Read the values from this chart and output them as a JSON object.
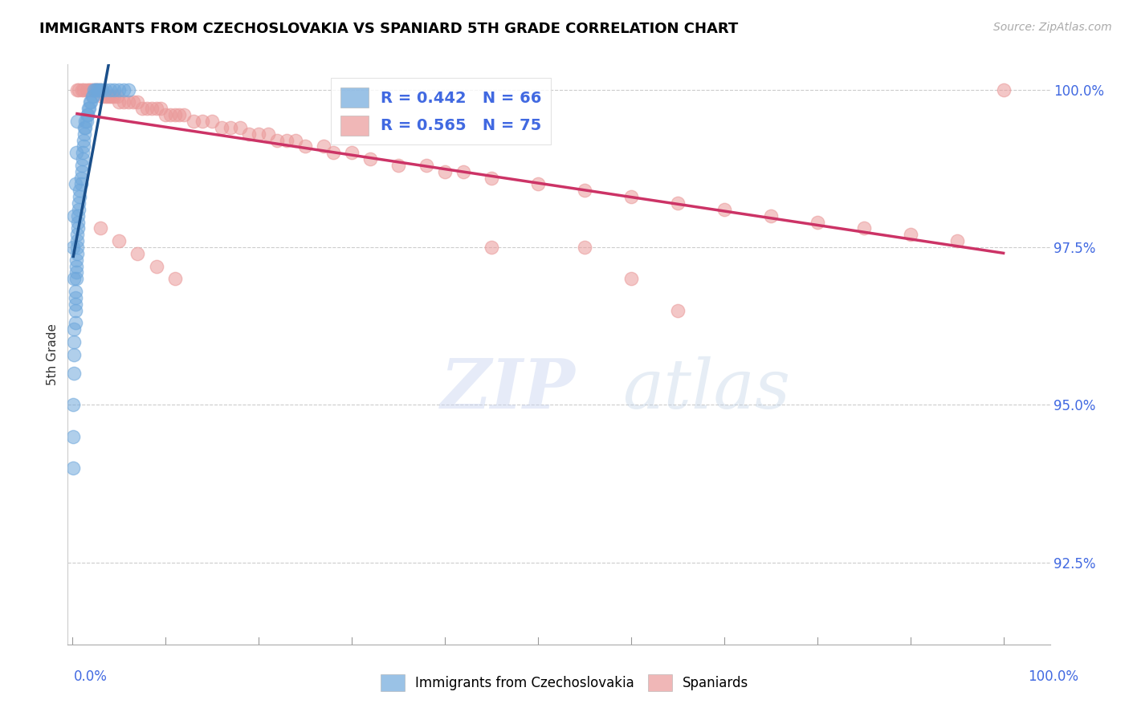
{
  "title": "IMMIGRANTS FROM CZECHOSLOVAKIA VS SPANIARD 5TH GRADE CORRELATION CHART",
  "source": "Source: ZipAtlas.com",
  "ylabel": "5th Grade",
  "blue_R": 0.442,
  "blue_N": 66,
  "pink_R": 0.565,
  "pink_N": 75,
  "blue_color": "#6fa8dc",
  "pink_color": "#ea9999",
  "blue_line_color": "#1a4f8a",
  "pink_line_color": "#cc3366",
  "legend1_label": "R = 0.442   N = 66",
  "legend2_label": "R = 0.565   N = 75",
  "bottom_label1": "Immigrants from Czechoslovakia",
  "bottom_label2": "Spaniards",
  "ytick_vals": [
    0.925,
    0.95,
    0.975,
    1.0
  ],
  "ytick_labels": [
    "92.5%",
    "95.0%",
    "97.5%",
    "100.0%"
  ],
  "blue_x": [
    0.001,
    0.001,
    0.001,
    0.002,
    0.002,
    0.002,
    0.002,
    0.003,
    0.003,
    0.003,
    0.003,
    0.003,
    0.004,
    0.004,
    0.004,
    0.004,
    0.005,
    0.005,
    0.005,
    0.005,
    0.006,
    0.006,
    0.006,
    0.007,
    0.007,
    0.008,
    0.008,
    0.009,
    0.009,
    0.01,
    0.01,
    0.011,
    0.011,
    0.012,
    0.012,
    0.013,
    0.013,
    0.014,
    0.014,
    0.015,
    0.016,
    0.016,
    0.017,
    0.018,
    0.019,
    0.02,
    0.021,
    0.022,
    0.023,
    0.025,
    0.027,
    0.028,
    0.03,
    0.032,
    0.035,
    0.04,
    0.045,
    0.05,
    0.055,
    0.06,
    0.001,
    0.002,
    0.003,
    0.004,
    0.005,
    0.002
  ],
  "blue_y": [
    0.94,
    0.945,
    0.95,
    0.955,
    0.958,
    0.96,
    0.962,
    0.963,
    0.965,
    0.966,
    0.967,
    0.968,
    0.97,
    0.971,
    0.972,
    0.973,
    0.974,
    0.975,
    0.976,
    0.977,
    0.978,
    0.979,
    0.98,
    0.981,
    0.982,
    0.983,
    0.984,
    0.985,
    0.986,
    0.987,
    0.988,
    0.989,
    0.99,
    0.991,
    0.992,
    0.993,
    0.994,
    0.994,
    0.995,
    0.995,
    0.996,
    0.996,
    0.997,
    0.997,
    0.998,
    0.998,
    0.999,
    0.999,
    1.0,
    1.0,
    1.0,
    1.0,
    1.0,
    1.0,
    1.0,
    1.0,
    1.0,
    1.0,
    1.0,
    1.0,
    0.975,
    0.98,
    0.985,
    0.99,
    0.995,
    0.97
  ],
  "pink_x": [
    0.005,
    0.007,
    0.01,
    0.012,
    0.015,
    0.018,
    0.02,
    0.022,
    0.025,
    0.027,
    0.03,
    0.032,
    0.035,
    0.038,
    0.04,
    0.042,
    0.045,
    0.048,
    0.05,
    0.055,
    0.06,
    0.065,
    0.07,
    0.075,
    0.08,
    0.085,
    0.09,
    0.095,
    0.1,
    0.105,
    0.11,
    0.115,
    0.12,
    0.13,
    0.14,
    0.15,
    0.16,
    0.17,
    0.18,
    0.19,
    0.2,
    0.21,
    0.22,
    0.23,
    0.24,
    0.25,
    0.27,
    0.28,
    0.3,
    0.32,
    0.35,
    0.38,
    0.4,
    0.42,
    0.45,
    0.5,
    0.55,
    0.6,
    0.65,
    0.7,
    0.75,
    0.8,
    0.85,
    0.9,
    0.95,
    1.0,
    0.55,
    0.6,
    0.65,
    0.45,
    0.03,
    0.05,
    0.07,
    0.09,
    0.11
  ],
  "pink_y": [
    1.0,
    1.0,
    1.0,
    1.0,
    1.0,
    1.0,
    1.0,
    1.0,
    1.0,
    1.0,
    1.0,
    0.999,
    0.999,
    0.999,
    0.999,
    0.999,
    0.999,
    0.999,
    0.998,
    0.998,
    0.998,
    0.998,
    0.998,
    0.997,
    0.997,
    0.997,
    0.997,
    0.997,
    0.996,
    0.996,
    0.996,
    0.996,
    0.996,
    0.995,
    0.995,
    0.995,
    0.994,
    0.994,
    0.994,
    0.993,
    0.993,
    0.993,
    0.992,
    0.992,
    0.992,
    0.991,
    0.991,
    0.99,
    0.99,
    0.989,
    0.988,
    0.988,
    0.987,
    0.987,
    0.986,
    0.985,
    0.984,
    0.983,
    0.982,
    0.981,
    0.98,
    0.979,
    0.978,
    0.977,
    0.976,
    1.0,
    0.975,
    0.97,
    0.965,
    0.975,
    0.978,
    0.976,
    0.974,
    0.972,
    0.97
  ]
}
